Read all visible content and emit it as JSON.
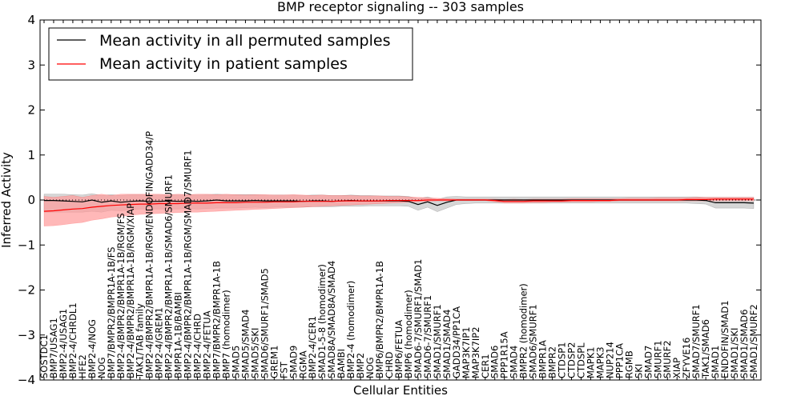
{
  "chart_data": {
    "type": "line",
    "title": "BMP receptor signaling -- 303 samples",
    "xlabel": "Cellular Entities",
    "ylabel": "Inferred Activity",
    "ylim": [
      -4,
      4
    ],
    "yticks": [
      4,
      3,
      2,
      1,
      0,
      -1,
      -2,
      -3,
      -4
    ],
    "yticklabels": [
      "4",
      "3",
      "2",
      "1",
      "0",
      "−1",
      "−2",
      "−3",
      "−4"
    ],
    "grid": false,
    "legend_position": "top-left",
    "categories": [
      "SOSTDC1",
      "BMP7/USAG1",
      "BMP2-4/USAG1",
      "BMP2-4/CHRDL1",
      "HFE2",
      "BMP2-4/NOG",
      "NOG",
      "BMP7/BMPR2/BMPR1A-1B/FS",
      "BMP2-4/BMPR2/BMPR1A-1B/RGM/FS",
      "BMP2-4/BMPR2/BMPR1A-1B/RGM/XIAP",
      "TAK1/TAB family",
      "BMP2-4/BMPR2/BMPR1A-1B/RGM/ENDOFIN/GADD34/P",
      "BMP2-4/GREM1",
      "BMP2-4/BMPR2/BMPR1A-1B/SMAD6/SMURF1",
      "BMPR1A-1B/BAMBI",
      "BMP2-4/BMPR2/BMPR1A-1B/RGM/SMAD7/SMURF1",
      "BMP2-4/CHRD",
      "BMP2-4/FETUA",
      "BMP7/BMPR2/BMPR1A-1B",
      "BMP7 (homodimer)",
      "SMAD5",
      "SMAD5/SMAD4",
      "SMAD5/SKI",
      "SMAD6/SMURF1/SMAD5",
      "GREM1",
      "FST",
      "SMAD9",
      "RGMA",
      "BMP2-4/CER1",
      "SMAD1-5-8 (homodimer)",
      "SMAD8A/SMAD8A/SMAD4",
      "BAMBI",
      "BMP2-4 (homodimer)",
      "BMP2",
      "NOG",
      "BMP6/BMPR2/BMPR1A-1B",
      "CHRD",
      "BMP6/FETUA",
      "BMP6 (homodimer)",
      "SMAD6-7/SMURF1/SMAD1",
      "SMAD6-7/SMURF1",
      "SMAD1/SMURF1",
      "SMAD1/SMAD4",
      "GADD34/PP1CA",
      "MAP3K7IP1",
      "MAP3K7IP2",
      "CER1",
      "SMAD6",
      "PPP1R15A",
      "SMAD4",
      "BMPR2 (homodimer)",
      "SMAD6/SMURF1",
      "BMPR1A",
      "BMPR2",
      "CTDSP1",
      "CTDSP2",
      "CTDSPL",
      "MAPK1",
      "MAPK3",
      "NUP214",
      "PPP1CA",
      "RGMB",
      "SKI",
      "SMAD7",
      "SMURF1",
      "SMURF2",
      "XIAP",
      "ZFYVE16",
      "SMAD7/SMURF1",
      "TAK1/SMAD6",
      "SMAD1",
      "ENDOFIN/SMAD1",
      "SMAD1/SKI",
      "SMAD1/SMAD6",
      "SMAD1/SMURF2"
    ],
    "series": [
      {
        "name": "Mean activity in all permuted samples",
        "color": "#000000",
        "band_color": "#c8c8c8",
        "values": [
          -0.01,
          -0.01,
          -0.02,
          -0.03,
          -0.04,
          0.0,
          -0.05,
          -0.02,
          -0.05,
          -0.03,
          -0.02,
          -0.03,
          -0.03,
          -0.02,
          -0.03,
          -0.02,
          -0.03,
          -0.02,
          0.0,
          -0.02,
          -0.02,
          -0.02,
          -0.01,
          -0.02,
          -0.02,
          -0.02,
          -0.02,
          -0.03,
          -0.02,
          -0.02,
          -0.03,
          -0.02,
          -0.01,
          -0.02,
          -0.02,
          -0.02,
          -0.02,
          -0.02,
          -0.03,
          -0.1,
          -0.04,
          -0.12,
          -0.05,
          0.0,
          0.0,
          0.0,
          0.0,
          0.0,
          0.0,
          0.0,
          0.0,
          0.0,
          0.0,
          0.0,
          0.0,
          0.0,
          0.0,
          0.0,
          0.0,
          0.0,
          0.0,
          0.0,
          0.0,
          0.0,
          0.0,
          0.0,
          0.0,
          0.0,
          0.0,
          -0.01,
          -0.06,
          -0.06,
          -0.06,
          -0.06,
          -0.07
        ],
        "lower": [
          -0.27,
          -0.27,
          -0.27,
          -0.27,
          -0.27,
          -0.25,
          -0.27,
          -0.23,
          -0.24,
          -0.22,
          -0.2,
          -0.2,
          -0.2,
          -0.2,
          -0.2,
          -0.19,
          -0.2,
          -0.19,
          -0.18,
          -0.18,
          -0.18,
          -0.17,
          -0.16,
          -0.17,
          -0.16,
          -0.16,
          -0.16,
          -0.16,
          -0.15,
          -0.15,
          -0.15,
          -0.14,
          -0.14,
          -0.14,
          -0.13,
          -0.13,
          -0.13,
          -0.13,
          -0.14,
          -0.23,
          -0.16,
          -0.26,
          -0.18,
          -0.1,
          -0.08,
          -0.07,
          -0.07,
          -0.07,
          -0.07,
          -0.07,
          -0.07,
          -0.07,
          -0.07,
          -0.07,
          -0.07,
          -0.07,
          -0.07,
          -0.07,
          -0.07,
          -0.07,
          -0.07,
          -0.07,
          -0.07,
          -0.07,
          -0.07,
          -0.07,
          -0.07,
          -0.07,
          -0.08,
          -0.09,
          -0.18,
          -0.18,
          -0.18,
          -0.18,
          -0.19
        ],
        "upper": [
          0.13,
          0.13,
          0.13,
          0.12,
          0.11,
          0.14,
          0.1,
          0.12,
          0.1,
          0.12,
          0.12,
          0.11,
          0.11,
          0.12,
          0.11,
          0.12,
          0.11,
          0.12,
          0.13,
          0.12,
          0.12,
          0.12,
          0.12,
          0.11,
          0.11,
          0.11,
          0.11,
          0.1,
          0.11,
          0.11,
          0.1,
          0.1,
          0.11,
          0.1,
          0.1,
          0.09,
          0.09,
          0.09,
          0.08,
          0.03,
          0.07,
          0.01,
          0.07,
          0.08,
          0.07,
          0.07,
          0.07,
          0.07,
          0.07,
          0.07,
          0.07,
          0.07,
          0.07,
          0.07,
          0.07,
          0.07,
          0.07,
          0.07,
          0.07,
          0.07,
          0.07,
          0.07,
          0.07,
          0.07,
          0.07,
          0.07,
          0.07,
          0.07,
          0.07,
          0.06,
          0.06,
          0.06,
          0.06,
          0.06,
          0.06
        ]
      },
      {
        "name": "Mean activity in patient samples",
        "color": "#ff0000",
        "band_color": "#ff9a9a",
        "values": [
          -0.25,
          -0.24,
          -0.22,
          -0.2,
          -0.19,
          -0.16,
          -0.14,
          -0.12,
          -0.11,
          -0.1,
          -0.09,
          -0.09,
          -0.08,
          -0.08,
          -0.08,
          -0.07,
          -0.07,
          -0.07,
          -0.06,
          -0.06,
          -0.06,
          -0.05,
          -0.05,
          -0.05,
          -0.04,
          -0.04,
          -0.04,
          -0.03,
          -0.03,
          -0.03,
          -0.03,
          -0.02,
          -0.02,
          -0.02,
          -0.02,
          -0.02,
          -0.01,
          -0.01,
          -0.01,
          -0.01,
          0.0,
          0.0,
          0.0,
          0.0,
          0.0,
          0.0,
          0.0,
          -0.01,
          -0.03,
          -0.03,
          -0.03,
          -0.02,
          -0.02,
          -0.02,
          -0.02,
          -0.01,
          -0.01,
          -0.01,
          -0.01,
          -0.01,
          0.0,
          0.0,
          0.0,
          0.0,
          0.0,
          0.0,
          0.0,
          0.01,
          0.01,
          0.01,
          0.02,
          0.02,
          0.02,
          0.02,
          0.02
        ],
        "lower": [
          -0.58,
          -0.57,
          -0.55,
          -0.52,
          -0.5,
          -0.45,
          -0.42,
          -0.38,
          -0.36,
          -0.34,
          -0.32,
          -0.31,
          -0.3,
          -0.29,
          -0.28,
          -0.27,
          -0.27,
          -0.26,
          -0.25,
          -0.24,
          -0.23,
          -0.22,
          -0.21,
          -0.2,
          -0.19,
          -0.18,
          -0.17,
          -0.16,
          -0.15,
          -0.14,
          -0.13,
          -0.12,
          -0.11,
          -0.1,
          -0.09,
          -0.08,
          -0.07,
          -0.06,
          -0.05,
          -0.04,
          -0.03,
          -0.02,
          -0.02,
          -0.01,
          -0.01,
          -0.01,
          -0.01,
          -0.04,
          -0.07,
          -0.07,
          -0.07,
          -0.06,
          -0.06,
          -0.05,
          -0.05,
          -0.04,
          -0.04,
          -0.04,
          -0.03,
          -0.03,
          -0.02,
          -0.02,
          -0.02,
          -0.02,
          -0.02,
          -0.02,
          -0.02,
          -0.02,
          -0.02,
          -0.02,
          -0.02,
          -0.02,
          -0.02,
          -0.02,
          -0.02
        ],
        "upper": [
          0.08,
          0.06,
          0.08,
          0.1,
          0.06,
          0.1,
          0.13,
          0.1,
          0.13,
          0.13,
          0.13,
          0.13,
          0.13,
          0.12,
          0.13,
          0.12,
          0.13,
          0.13,
          0.12,
          0.13,
          0.12,
          0.11,
          0.12,
          0.12,
          0.11,
          0.11,
          0.12,
          0.11,
          0.1,
          0.11,
          0.1,
          0.1,
          0.1,
          0.09,
          0.09,
          0.09,
          0.08,
          0.08,
          0.07,
          0.06,
          0.05,
          0.04,
          0.03,
          0.02,
          0.02,
          0.02,
          0.02,
          0.02,
          0.01,
          0.02,
          0.01,
          0.02,
          0.02,
          0.02,
          0.02,
          0.03,
          0.03,
          0.03,
          0.03,
          0.03,
          0.03,
          0.04,
          0.04,
          0.04,
          0.05,
          0.05,
          0.05,
          0.05,
          0.06,
          0.06,
          0.06,
          0.06,
          0.06,
          0.06,
          0.06
        ]
      }
    ]
  }
}
